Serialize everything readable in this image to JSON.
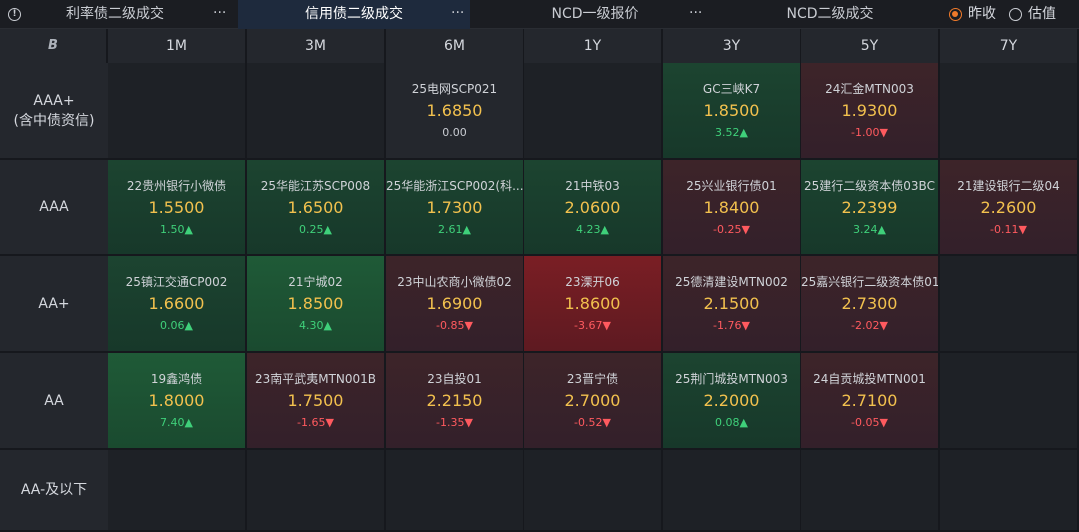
{
  "tabs": [
    {
      "label": "利率债二级成交",
      "more": "···"
    },
    {
      "label": "信用债二级成交",
      "more": "···"
    },
    {
      "label": "NCD一级报价",
      "more": "···"
    },
    {
      "label": "NCD二级成交",
      "more": ""
    }
  ],
  "radios": [
    {
      "label": "昨收",
      "checked": true
    },
    {
      "label": "估值",
      "checked": false
    }
  ],
  "corner_logo": "B",
  "columns": [
    "1M",
    "3M",
    "6M",
    "1Y",
    "3Y",
    "5Y",
    "7Y"
  ],
  "rows": [
    {
      "label": "AAA+\n(含中债资信)",
      "cells": [
        null,
        null,
        {
          "name": "25电网SCP021",
          "price": "1.6850",
          "change": "0.00",
          "dir": "zero"
        },
        null,
        {
          "name": "GC三峡K7",
          "price": "1.8500",
          "change": "3.52▲",
          "dir": "pos"
        },
        {
          "name": "24汇金MTN003",
          "price": "1.9300",
          "change": "-1.00▼",
          "dir": "neg"
        },
        null
      ]
    },
    {
      "label": "AAA",
      "cells": [
        {
          "name": "22贵州银行小微债",
          "price": "1.5500",
          "change": "1.50▲",
          "dir": "pos"
        },
        {
          "name": "25华能江苏SCP008",
          "price": "1.6500",
          "change": "0.25▲",
          "dir": "pos"
        },
        {
          "name": "25华能浙江SCP002(科...",
          "price": "1.7300",
          "change": "2.61▲",
          "dir": "pos"
        },
        {
          "name": "21中铁03",
          "price": "2.0600",
          "change": "4.23▲",
          "dir": "pos"
        },
        {
          "name": "25兴业银行债01",
          "price": "1.8400",
          "change": "-0.25▼",
          "dir": "neg"
        },
        {
          "name": "25建行二级资本债03BC",
          "price": "2.2399",
          "change": "3.24▲",
          "dir": "pos"
        },
        {
          "name": "21建设银行二级04",
          "price": "2.2600",
          "change": "-0.11▼",
          "dir": "neg"
        }
      ]
    },
    {
      "label": "AA+",
      "cells": [
        {
          "name": "25镇江交通CP002",
          "price": "1.6600",
          "change": "0.06▲",
          "dir": "pos"
        },
        {
          "name": "21宁城02",
          "price": "1.8500",
          "change": "4.30▲",
          "dir": "pos"
        },
        {
          "name": "23中山农商小微债02",
          "price": "1.6900",
          "change": "-0.85▼",
          "dir": "neg"
        },
        {
          "name": "23溧开06",
          "price": "1.8600",
          "change": "-3.67▼",
          "dir": "neg"
        },
        {
          "name": "25德清建设MTN002",
          "price": "2.1500",
          "change": "-1.76▼",
          "dir": "neg"
        },
        {
          "name": "25嘉兴银行二级资本债01",
          "price": "2.7300",
          "change": "-2.02▼",
          "dir": "neg"
        },
        null
      ]
    },
    {
      "label": "AA",
      "cells": [
        {
          "name": "19鑫鸿债",
          "price": "1.8000",
          "change": "7.40▲",
          "dir": "pos"
        },
        {
          "name": "23南平武夷MTN001B",
          "price": "1.7500",
          "change": "-1.65▼",
          "dir": "neg"
        },
        {
          "name": "23自投01",
          "price": "2.2150",
          "change": "-1.35▼",
          "dir": "neg"
        },
        {
          "name": "23晋宁债",
          "price": "2.7000",
          "change": "-0.52▼",
          "dir": "neg"
        },
        {
          "name": "25荆门城投MTN003",
          "price": "2.2000",
          "change": "0.08▲",
          "dir": "pos"
        },
        {
          "name": "24自贡城投MTN001",
          "price": "2.7100",
          "change": "-0.05▼",
          "dir": "neg"
        },
        null
      ]
    },
    {
      "label": "AA-及以下",
      "cells": [
        null,
        null,
        null,
        null,
        null,
        null,
        null
      ]
    }
  ]
}
